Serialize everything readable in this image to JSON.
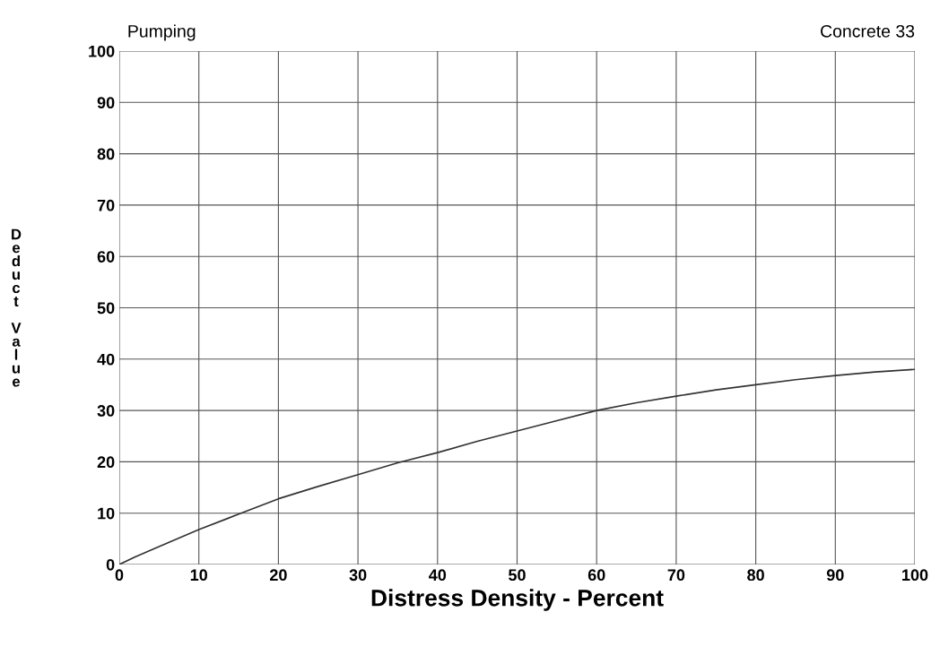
{
  "chart_data": {
    "type": "line",
    "title": "Pumping",
    "subtitle": "Concrete 33",
    "xlabel": "Distress Density - Percent",
    "ylabel": "Deduct Value",
    "x": [
      0,
      2,
      5,
      10,
      15,
      20,
      25,
      30,
      35,
      40,
      45,
      50,
      55,
      60,
      65,
      70,
      75,
      80,
      85,
      90,
      95,
      100
    ],
    "series": [
      {
        "color": "#333333",
        "values": [
          0,
          1.5,
          3.5,
          6.8,
          9.8,
          12.8,
          15.2,
          17.5,
          19.8,
          21.8,
          24,
          26,
          28,
          30,
          31.5,
          32.8,
          34,
          35,
          36,
          36.8,
          37.5,
          38
        ]
      }
    ],
    "xlim": [
      0,
      100
    ],
    "ylim": [
      0,
      100
    ],
    "xticks": [
      0,
      10,
      20,
      30,
      40,
      50,
      60,
      70,
      80,
      90,
      100
    ],
    "yticks": [
      0,
      10,
      20,
      30,
      40,
      50,
      60,
      70,
      80,
      90,
      100
    ],
    "grid": true,
    "legend": false,
    "marker": "none",
    "line_style": "solid"
  }
}
